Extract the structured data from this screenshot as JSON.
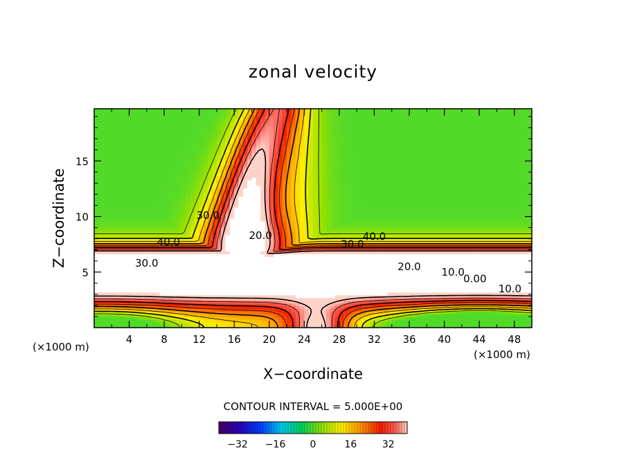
{
  "chart_data": {
    "type": "contour",
    "title": "zonal velocity",
    "xlabel": "X−coordinate",
    "ylabel": "Z−coordinate",
    "x_unit_left": "(×1000 m)",
    "x_unit_right": "(×1000 m)",
    "xlim": [
      0,
      50
    ],
    "ylim": [
      0,
      19.7
    ],
    "x_ticks": [
      "4",
      "8",
      "12",
      "16",
      "20",
      "24",
      "28",
      "32",
      "36",
      "40",
      "44",
      "48"
    ],
    "x_tick_values": [
      4,
      8,
      12,
      16,
      20,
      24,
      28,
      32,
      36,
      40,
      44,
      48
    ],
    "y_ticks": [
      "5",
      "10",
      "15"
    ],
    "y_tick_values": [
      5,
      10,
      15
    ],
    "contour_interval_text": "CONTOUR INTERVAL = 5.000E+00",
    "contour_interval": 5.0,
    "contour_labels": [
      {
        "text": "40.0",
        "x": 8.5,
        "z": 7.7
      },
      {
        "text": "30.0",
        "x": 6.0,
        "z": 5.8
      },
      {
        "text": "30.0",
        "x": 13.0,
        "z": 10.1
      },
      {
        "text": "20.0",
        "x": 19.0,
        "z": 8.3
      },
      {
        "text": "40.0",
        "x": 32.0,
        "z": 8.2
      },
      {
        "text": "30.0",
        "x": 29.5,
        "z": 7.5
      },
      {
        "text": "20.0",
        "x": 36.0,
        "z": 5.5
      },
      {
        "text": "10.0",
        "x": 41.0,
        "z": 5.0
      },
      {
        "text": "0.00",
        "x": 43.5,
        "z": 4.4
      },
      {
        "text": "10.0",
        "x": 47.5,
        "z": 3.5
      }
    ],
    "colorbar": {
      "min": -40,
      "max": 40,
      "ticks": [
        "−32",
        "−16",
        "0",
        "16",
        "32"
      ],
      "tick_values": [
        -32,
        -16,
        0,
        16,
        32
      ]
    }
  }
}
